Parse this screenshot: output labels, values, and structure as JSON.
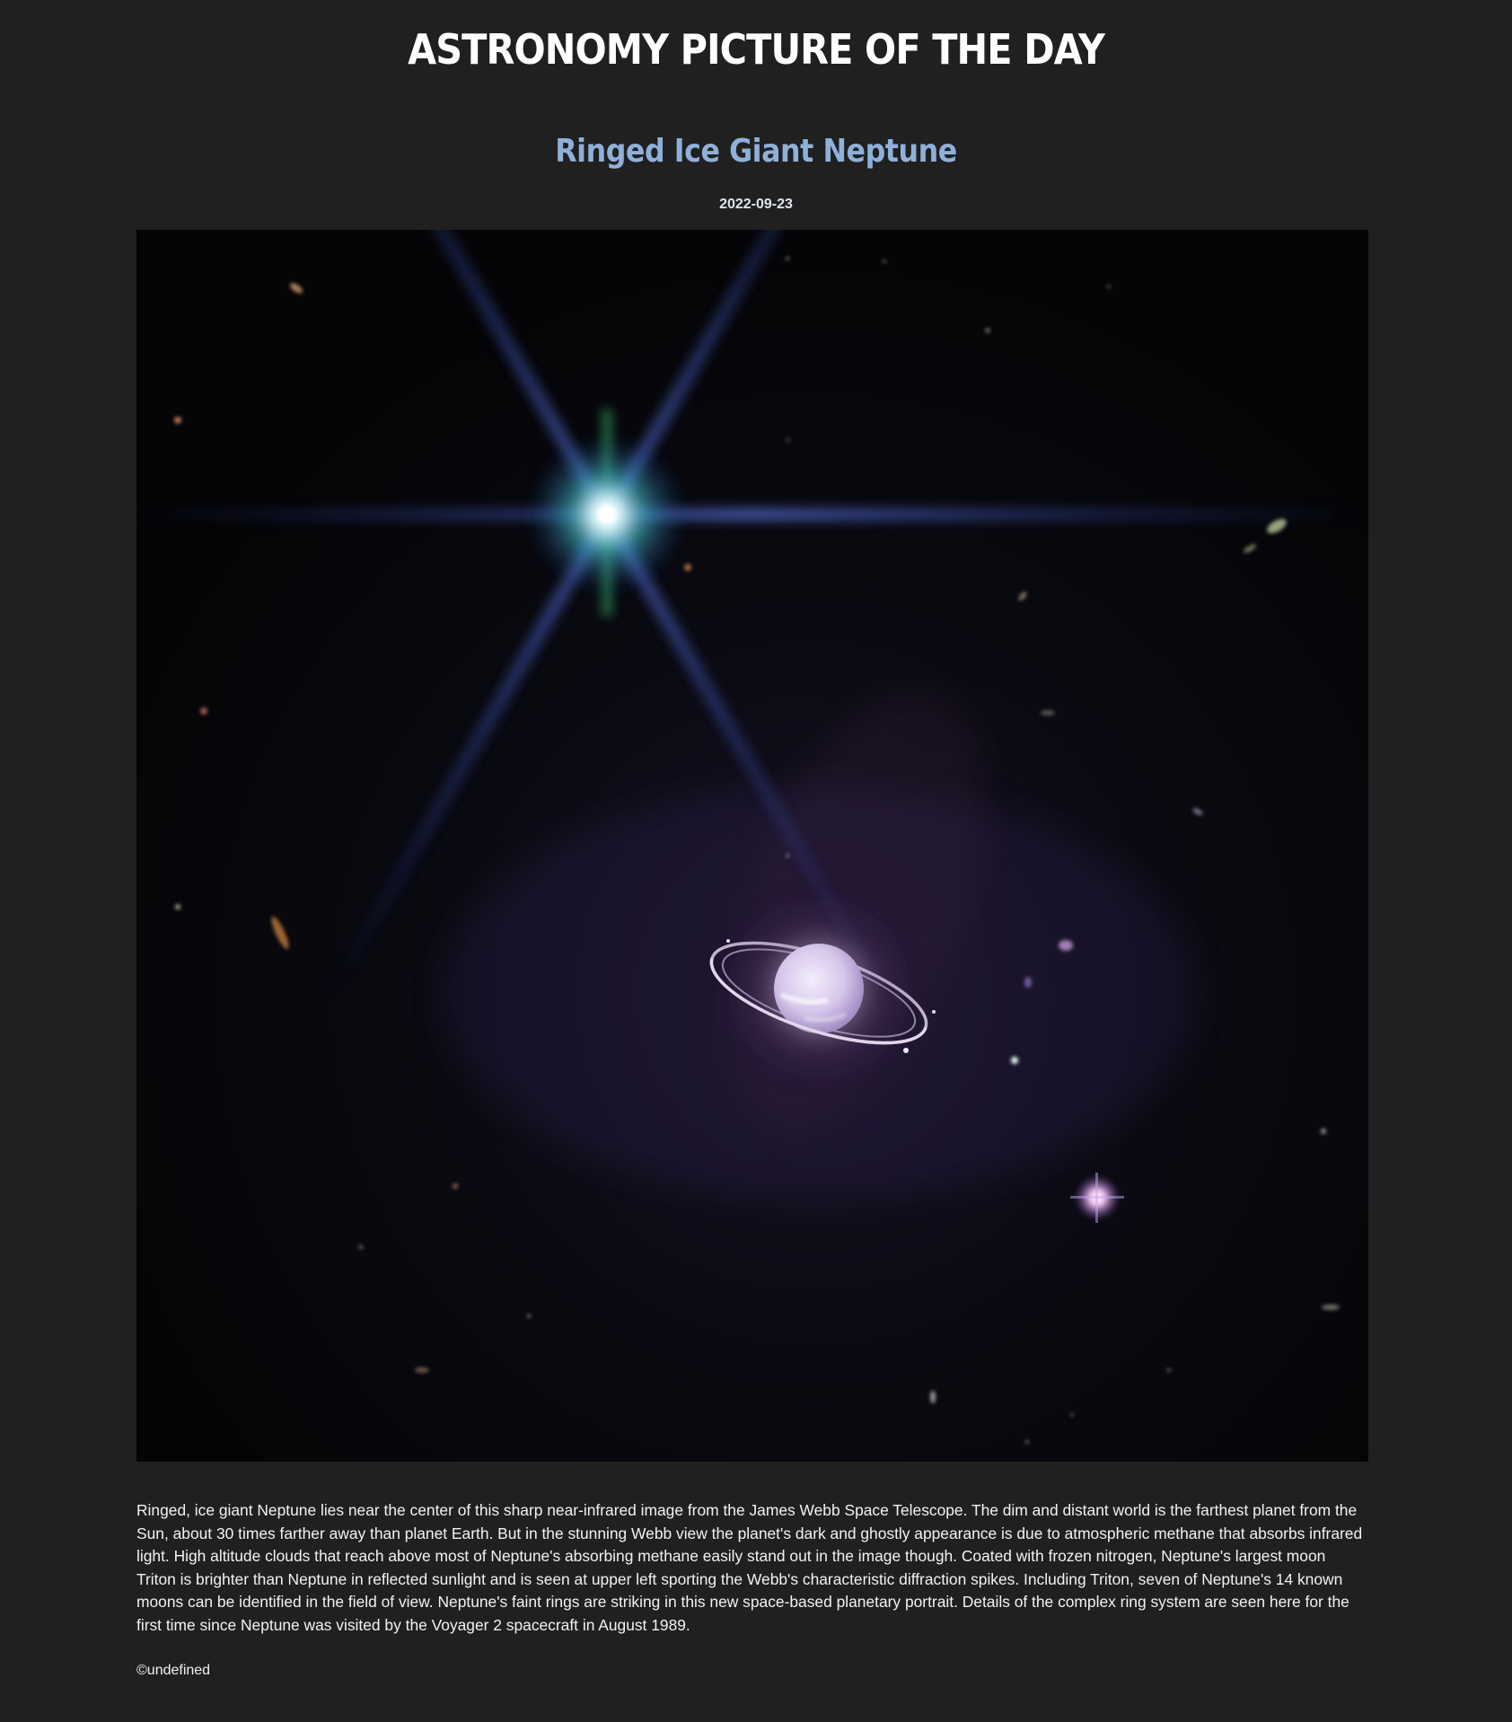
{
  "site": {
    "title": "ASTRONOMY PICTURE OF THE DAY"
  },
  "picture": {
    "title": "Ringed Ice Giant Neptune",
    "date": "2022-09-23",
    "image_subject": "neptune-ring-image",
    "explanation": "Ringed, ice giant Neptune lies near the center of this sharp near-infrared image from the James Webb Space Telescope. The dim and distant world is the farthest planet from the Sun, about 30 times farther away than planet Earth. But in the stunning Webb view the planet's dark and ghostly appearance is due to atmospheric methane that absorbs infrared light. High altitude clouds that reach above most of Neptune's absorbing methane easily stand out in the image though. Coated with frozen nitrogen, Neptune's largest moon Triton is brighter than Neptune in reflected sunlight and is seen at upper left sporting the Webb's characteristic diffraction spikes. Including Triton, seven of Neptune's 14 known moons can be identified in the field of view. Neptune's faint rings are striking in this new space-based planetary portrait. Details of the complex ring system are seen here for the first time since Neptune was visited by the Voyager 2 spacecraft in August 1989.",
    "copyright": "©undefined"
  },
  "colors": {
    "page_background": "#202020",
    "title_color": "#ffffff",
    "picture_title_color": "#8fb0d9",
    "text_color": "#f2f2f2"
  }
}
